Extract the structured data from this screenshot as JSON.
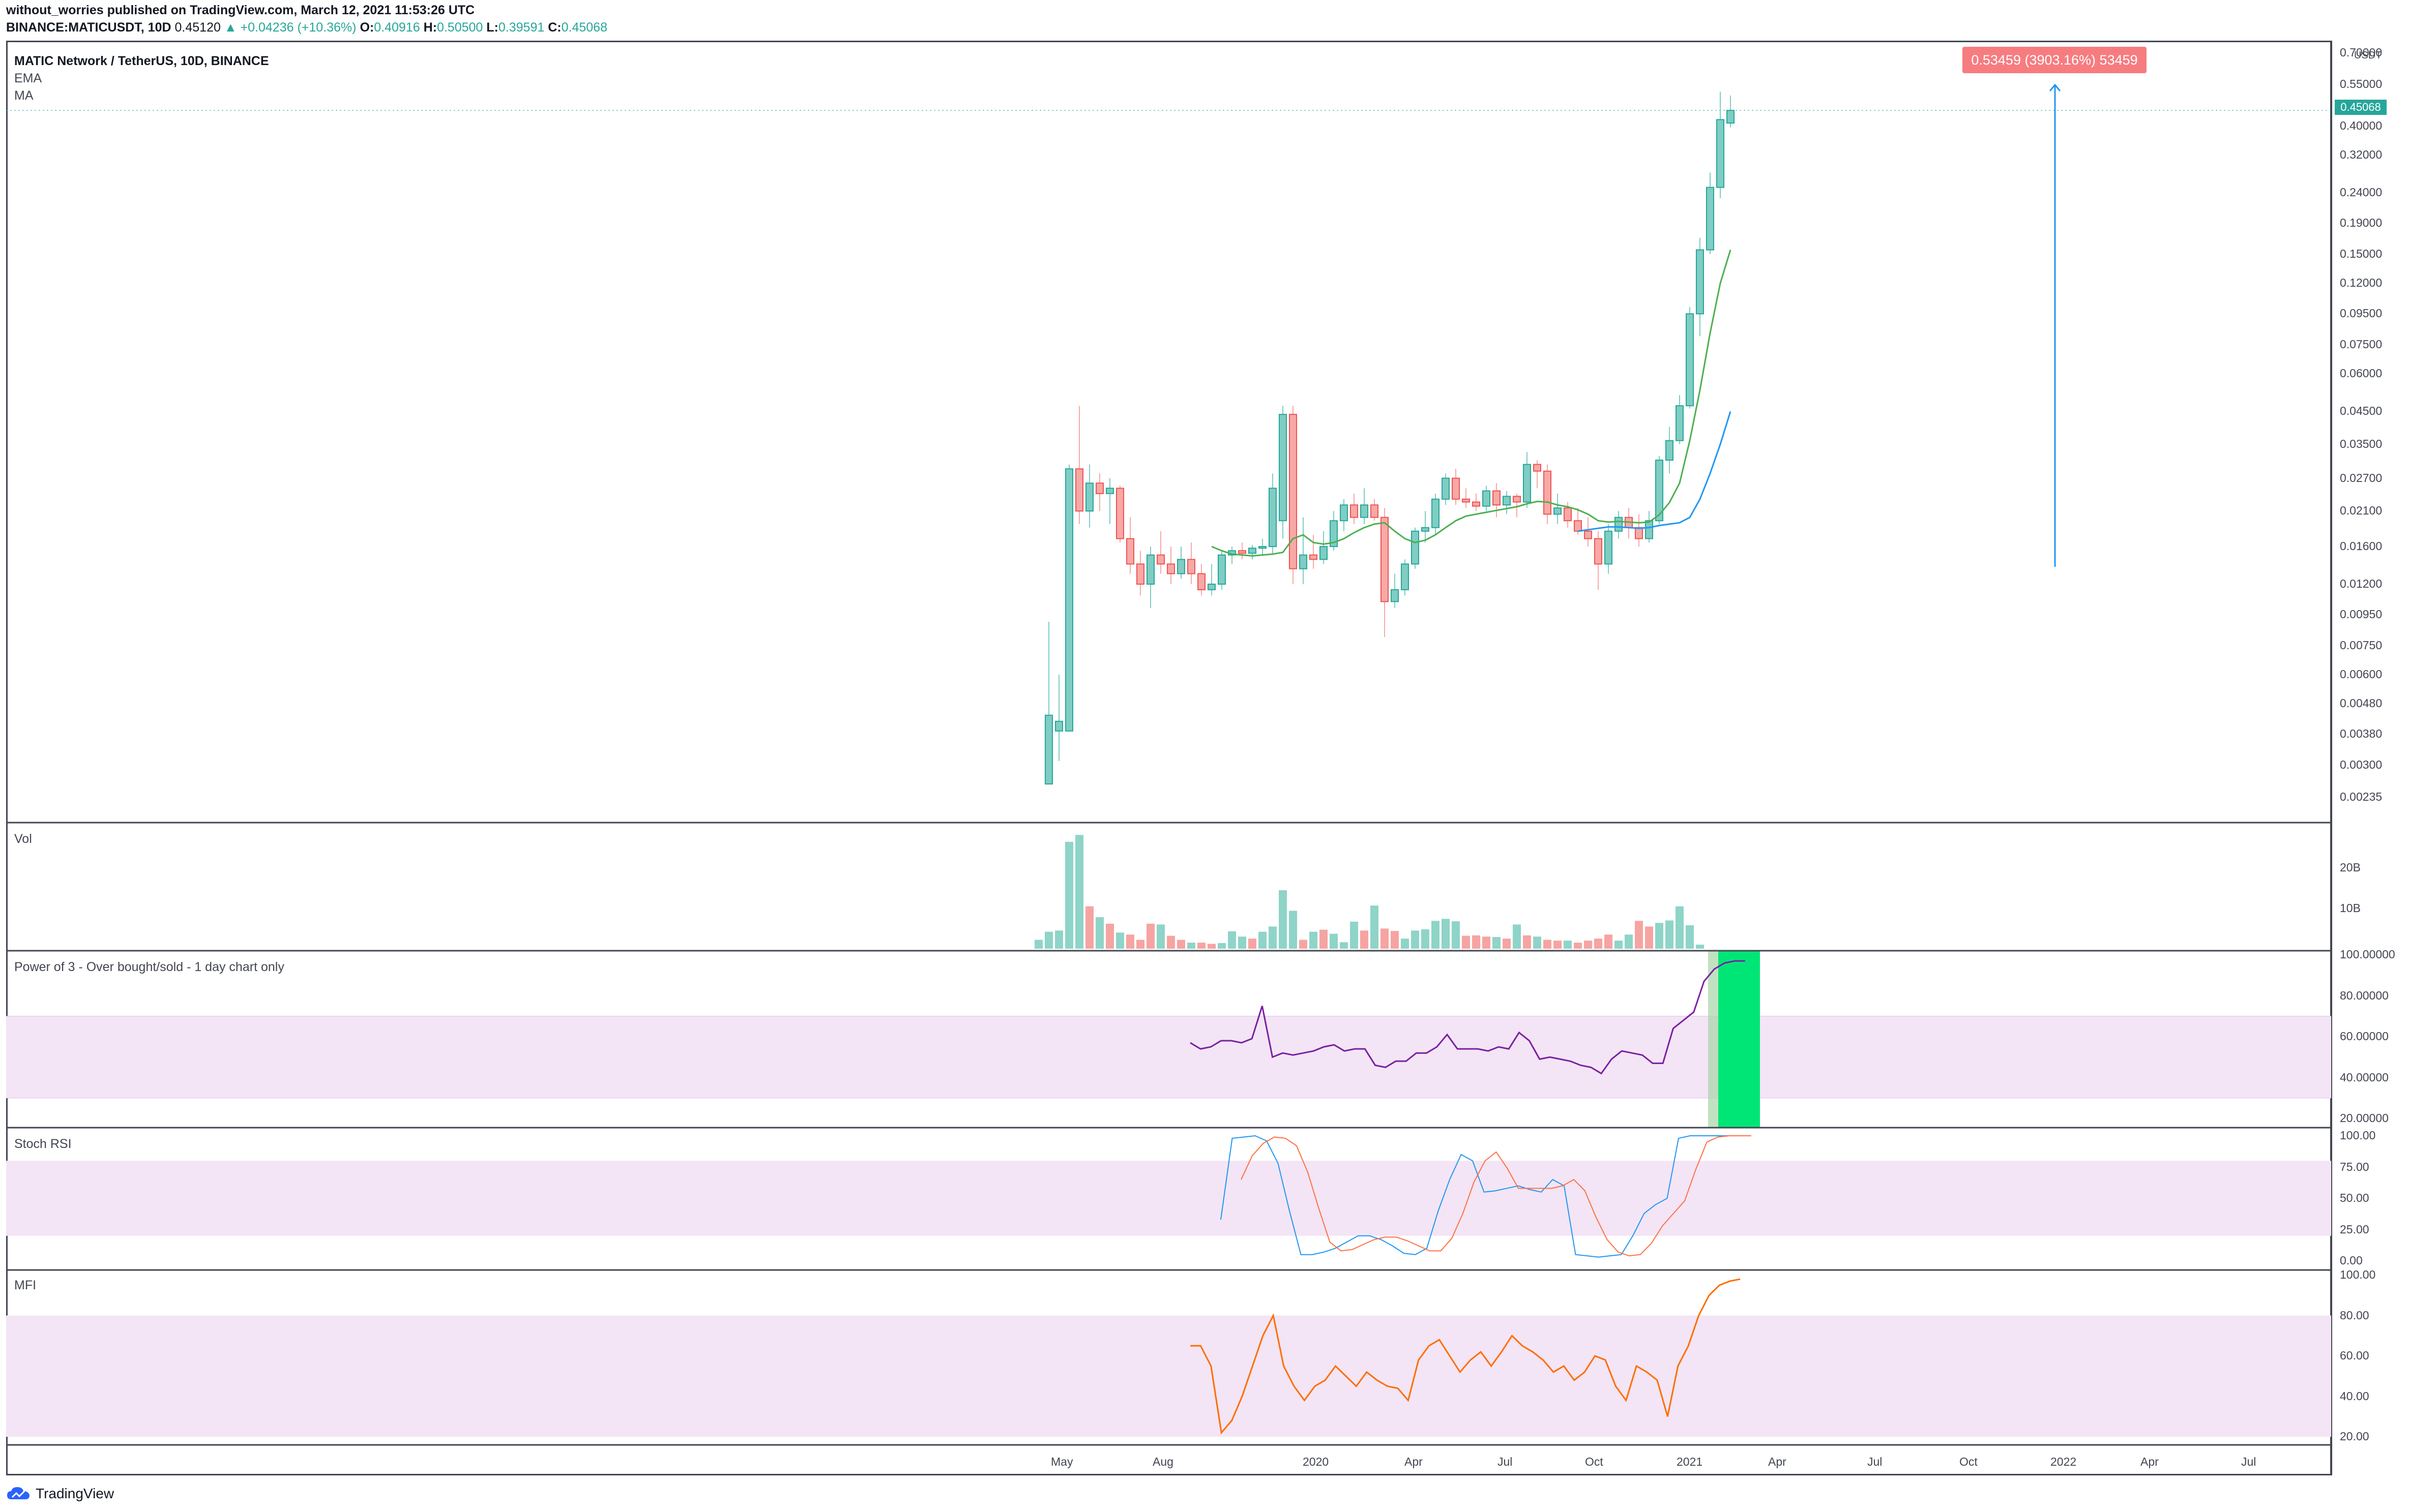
{
  "header": {
    "line1": "without_worries published on TradingView.com, March 12, 2021 11:53:26 UTC",
    "symbol": "BINANCE:MATICUSDT, 10D",
    "last": "0.45120",
    "change": "▲ +0.04236 (+10.36%)",
    "o_label": "O:",
    "o": "0.40916",
    "h_label": "H:",
    "h": "0.50500",
    "l_label": "L:",
    "l": "0.39591",
    "c_label": "C:",
    "c": "0.45068"
  },
  "colors": {
    "up": "#26a69a",
    "up_fill": "#7fcdc3",
    "down": "#ef5350",
    "down_fill": "#f7a9a7",
    "ema": "#4caf50",
    "ma": "#2196f3",
    "power3": "#7b1fa2",
    "stoch_k": "#2196f3",
    "stoch_d": "#ff7043",
    "mfi": "#ff6d00",
    "band": "#f3e5f5",
    "highlight": "#00e676"
  },
  "panes": {
    "main": {
      "title": "MATIC Network / TetherUS, 10D, BINANCE",
      "ind1": "EMA",
      "ind2": "MA",
      "currency": "USDT",
      "current_price": "0.45068",
      "measure_label": "0.53459 (3903.16%) 53459"
    },
    "volume": {
      "title": "Vol"
    },
    "power3": {
      "title": "Power of 3 - Over bought/sold - 1 day chart only"
    },
    "stoch": {
      "title": "Stoch RSI"
    },
    "mfi": {
      "title": "MFI"
    }
  },
  "axes": {
    "price_ticks": [
      "0.70000",
      "0.55000",
      "0.40000",
      "0.32000",
      "0.24000",
      "0.19000",
      "0.15000",
      "0.12000",
      "0.09500",
      "0.07500",
      "0.06000",
      "0.04500",
      "0.03500",
      "0.02700",
      "0.02100",
      "0.01600",
      "0.01200",
      "0.00950",
      "0.00750",
      "0.00600",
      "0.00480",
      "0.00380",
      "0.00300",
      "0.00235"
    ],
    "volume_ticks": [
      "20B",
      "10B"
    ],
    "power3_ticks": [
      "100.00000",
      "80.00000",
      "60.00000",
      "40.00000",
      "20.00000"
    ],
    "stoch_ticks": [
      "100.00",
      "75.00",
      "50.00",
      "25.00",
      "0.00"
    ],
    "mfi_ticks": [
      "100.00",
      "80.00",
      "60.00",
      "40.00",
      "20.00"
    ],
    "x_ticks": [
      "May",
      "Aug",
      "2020",
      "Apr",
      "Jul",
      "Oct",
      "2021",
      "Apr",
      "Jul",
      "Oct",
      "2022",
      "Apr",
      "Jul"
    ]
  },
  "branding": {
    "name": "TradingView"
  },
  "chart_data": {
    "type": "candlestick",
    "title": "MATIC Network / TetherUS, 10D, BINANCE",
    "y_scale": "log",
    "ylim": [
      0.002,
      0.7
    ],
    "x_axis": [
      "May 2019",
      "Jul 2022"
    ],
    "candles": [
      {
        "o": 0.0026,
        "h": 0.009,
        "l": 0.0026,
        "c": 0.0044
      },
      {
        "o": 0.0039,
        "h": 0.006,
        "l": 0.0031,
        "c": 0.0042
      },
      {
        "o": 0.0039,
        "h": 0.03,
        "l": 0.0039,
        "c": 0.029
      },
      {
        "o": 0.029,
        "h": 0.047,
        "l": 0.019,
        "c": 0.021
      },
      {
        "o": 0.021,
        "h": 0.03,
        "l": 0.0185,
        "c": 0.026
      },
      {
        "o": 0.026,
        "h": 0.028,
        "l": 0.021,
        "c": 0.024
      },
      {
        "o": 0.024,
        "h": 0.027,
        "l": 0.019,
        "c": 0.025
      },
      {
        "o": 0.025,
        "h": 0.0255,
        "l": 0.0165,
        "c": 0.017
      },
      {
        "o": 0.017,
        "h": 0.02,
        "l": 0.013,
        "c": 0.014
      },
      {
        "o": 0.014,
        "h": 0.0155,
        "l": 0.011,
        "c": 0.012
      },
      {
        "o": 0.012,
        "h": 0.016,
        "l": 0.01,
        "c": 0.015
      },
      {
        "o": 0.015,
        "h": 0.018,
        "l": 0.013,
        "c": 0.014
      },
      {
        "o": 0.014,
        "h": 0.016,
        "l": 0.012,
        "c": 0.013
      },
      {
        "o": 0.013,
        "h": 0.016,
        "l": 0.0125,
        "c": 0.0145
      },
      {
        "o": 0.0145,
        "h": 0.0165,
        "l": 0.012,
        "c": 0.013
      },
      {
        "o": 0.013,
        "h": 0.014,
        "l": 0.011,
        "c": 0.0115
      },
      {
        "o": 0.0115,
        "h": 0.014,
        "l": 0.011,
        "c": 0.012
      },
      {
        "o": 0.012,
        "h": 0.0155,
        "l": 0.0115,
        "c": 0.015
      },
      {
        "o": 0.015,
        "h": 0.016,
        "l": 0.014,
        "c": 0.0155
      },
      {
        "o": 0.0155,
        "h": 0.0165,
        "l": 0.0145,
        "c": 0.0152
      },
      {
        "o": 0.0152,
        "h": 0.0162,
        "l": 0.0145,
        "c": 0.0158
      },
      {
        "o": 0.0158,
        "h": 0.017,
        "l": 0.015,
        "c": 0.016
      },
      {
        "o": 0.016,
        "h": 0.028,
        "l": 0.015,
        "c": 0.025
      },
      {
        "o": 0.0195,
        "h": 0.047,
        "l": 0.017,
        "c": 0.044
      },
      {
        "o": 0.044,
        "h": 0.047,
        "l": 0.012,
        "c": 0.0135
      },
      {
        "o": 0.0135,
        "h": 0.02,
        "l": 0.012,
        "c": 0.015
      },
      {
        "o": 0.015,
        "h": 0.0175,
        "l": 0.0135,
        "c": 0.0145
      },
      {
        "o": 0.0145,
        "h": 0.018,
        "l": 0.014,
        "c": 0.016
      },
      {
        "o": 0.016,
        "h": 0.021,
        "l": 0.0155,
        "c": 0.0195
      },
      {
        "o": 0.0195,
        "h": 0.023,
        "l": 0.018,
        "c": 0.022
      },
      {
        "o": 0.022,
        "h": 0.024,
        "l": 0.019,
        "c": 0.02
      },
      {
        "o": 0.02,
        "h": 0.025,
        "l": 0.019,
        "c": 0.022
      },
      {
        "o": 0.022,
        "h": 0.023,
        "l": 0.0195,
        "c": 0.02
      },
      {
        "o": 0.02,
        "h": 0.0215,
        "l": 0.008,
        "c": 0.0105
      },
      {
        "o": 0.0105,
        "h": 0.013,
        "l": 0.01,
        "c": 0.0115
      },
      {
        "o": 0.0115,
        "h": 0.0145,
        "l": 0.011,
        "c": 0.014
      },
      {
        "o": 0.014,
        "h": 0.0185,
        "l": 0.0135,
        "c": 0.018
      },
      {
        "o": 0.018,
        "h": 0.021,
        "l": 0.0165,
        "c": 0.0185
      },
      {
        "o": 0.0185,
        "h": 0.024,
        "l": 0.0175,
        "c": 0.023
      },
      {
        "o": 0.023,
        "h": 0.028,
        "l": 0.022,
        "c": 0.027
      },
      {
        "o": 0.027,
        "h": 0.029,
        "l": 0.022,
        "c": 0.023
      },
      {
        "o": 0.023,
        "h": 0.025,
        "l": 0.0215,
        "c": 0.0225
      },
      {
        "o": 0.0225,
        "h": 0.024,
        "l": 0.021,
        "c": 0.0218
      },
      {
        "o": 0.0218,
        "h": 0.0255,
        "l": 0.021,
        "c": 0.0245
      },
      {
        "o": 0.0245,
        "h": 0.026,
        "l": 0.02,
        "c": 0.022
      },
      {
        "o": 0.022,
        "h": 0.0245,
        "l": 0.0205,
        "c": 0.0235
      },
      {
        "o": 0.0235,
        "h": 0.024,
        "l": 0.02,
        "c": 0.0225
      },
      {
        "o": 0.0225,
        "h": 0.033,
        "l": 0.0215,
        "c": 0.03
      },
      {
        "o": 0.03,
        "h": 0.031,
        "l": 0.025,
        "c": 0.0285
      },
      {
        "o": 0.0285,
        "h": 0.03,
        "l": 0.019,
        "c": 0.0205
      },
      {
        "o": 0.0205,
        "h": 0.024,
        "l": 0.019,
        "c": 0.0215
      },
      {
        "o": 0.0215,
        "h": 0.0225,
        "l": 0.0185,
        "c": 0.0195
      },
      {
        "o": 0.0195,
        "h": 0.0215,
        "l": 0.0175,
        "c": 0.018
      },
      {
        "o": 0.018,
        "h": 0.02,
        "l": 0.016,
        "c": 0.017
      },
      {
        "o": 0.017,
        "h": 0.018,
        "l": 0.0115,
        "c": 0.014
      },
      {
        "o": 0.014,
        "h": 0.019,
        "l": 0.013,
        "c": 0.018
      },
      {
        "o": 0.018,
        "h": 0.021,
        "l": 0.017,
        "c": 0.02
      },
      {
        "o": 0.02,
        "h": 0.0215,
        "l": 0.017,
        "c": 0.0185
      },
      {
        "o": 0.0185,
        "h": 0.0205,
        "l": 0.016,
        "c": 0.017
      },
      {
        "o": 0.017,
        "h": 0.021,
        "l": 0.0165,
        "c": 0.0195
      },
      {
        "o": 0.0195,
        "h": 0.032,
        "l": 0.019,
        "c": 0.031
      },
      {
        "o": 0.031,
        "h": 0.04,
        "l": 0.028,
        "c": 0.036
      },
      {
        "o": 0.036,
        "h": 0.051,
        "l": 0.035,
        "c": 0.047
      },
      {
        "o": 0.047,
        "h": 0.1,
        "l": 0.046,
        "c": 0.095
      },
      {
        "o": 0.095,
        "h": 0.17,
        "l": 0.08,
        "c": 0.155
      },
      {
        "o": 0.155,
        "h": 0.28,
        "l": 0.15,
        "c": 0.25
      },
      {
        "o": 0.25,
        "h": 0.52,
        "l": 0.23,
        "c": 0.42
      },
      {
        "o": 0.4092,
        "h": 0.505,
        "l": 0.3959,
        "c": 0.4507
      }
    ],
    "ema": [
      0.016,
      0.0155,
      0.0151,
      0.015,
      0.0149,
      0.015,
      0.0151,
      0.0153,
      0.017,
      0.0175,
      0.0165,
      0.0163,
      0.0165,
      0.017,
      0.0178,
      0.0185,
      0.019,
      0.0192,
      0.018,
      0.017,
      0.0165,
      0.0168,
      0.0175,
      0.0185,
      0.0195,
      0.0202,
      0.0205,
      0.0208,
      0.0211,
      0.0214,
      0.0217,
      0.0222,
      0.0226,
      0.0225,
      0.022,
      0.0217,
      0.0212,
      0.0205,
      0.0195,
      0.0193,
      0.0194,
      0.0193,
      0.0192,
      0.0193,
      0.0204,
      0.0224,
      0.026,
      0.036,
      0.053,
      0.082,
      0.12,
      0.155
    ],
    "ma": [
      0.018,
      0.0182,
      0.0184,
      0.0186,
      0.0186,
      0.0185,
      0.0184,
      0.0185,
      0.0188,
      0.019,
      0.0192,
      0.02,
      0.023,
      0.028,
      0.035,
      0.045
    ],
    "measure": {
      "from": 0.0137,
      "to": 0.548,
      "pct": "3903.16%"
    },
    "volume_billions": [
      2.2,
      4.2,
      4.5,
      26.5,
      28.2,
      10.5,
      7.8,
      6.2,
      4.0,
      3.5,
      2.2,
      6.2,
      6.0,
      3.2,
      2.2,
      1.5,
      1.5,
      1.2,
      1.4,
      4.3,
      3.0,
      2.5,
      4.2,
      5.5,
      14.5,
      9.4,
      2.2,
      4.2,
      4.7,
      3.7,
      1.6,
      6.7,
      4.5,
      10.7,
      5.0,
      4.4,
      2.5,
      4.5,
      4.8,
      6.9,
      7.4,
      6.8,
      3.2,
      3.3,
      3.0,
      2.9,
      2.5,
      6.0,
      3.3,
      3.0,
      2.2,
      2.0,
      2.0,
      1.5,
      2.0,
      2.5,
      3.5,
      2.0,
      3.5,
      6.9,
      5.5,
      6.4,
      7.0,
      10.5,
      5.8,
      1.0
    ],
    "power3": [
      57,
      54,
      55,
      58,
      58,
      57,
      59,
      75,
      50,
      52,
      51,
      52,
      53,
      55,
      56,
      53,
      54,
      54,
      46,
      45,
      48,
      48,
      52,
      52,
      55,
      61,
      54,
      54,
      54,
      53,
      55,
      54,
      62,
      58,
      49,
      50,
      49,
      48,
      46,
      45,
      42,
      49,
      53,
      52,
      51,
      47,
      47,
      64,
      68,
      72,
      87,
      93,
      96,
      97,
      97
    ],
    "stoch_k": [
      33,
      98,
      99,
      100,
      96,
      78,
      40,
      5,
      5,
      7,
      10,
      15,
      20,
      20,
      17,
      12,
      6,
      5,
      10,
      40,
      65,
      85,
      80,
      55,
      56,
      58,
      60,
      57,
      55,
      65,
      60,
      5,
      4,
      3,
      4,
      5,
      20,
      38,
      45,
      50,
      98,
      100,
      100,
      100,
      100,
      100
    ],
    "stoch_d": [
      65,
      84,
      94,
      99,
      98,
      92,
      71,
      42,
      15,
      8,
      9,
      13,
      17,
      19,
      19,
      16,
      12,
      8,
      8,
      18,
      38,
      63,
      80,
      87,
      74,
      58,
      58,
      58,
      58,
      60,
      65,
      56,
      35,
      17,
      7,
      4,
      5,
      14,
      28,
      38,
      48,
      73,
      95,
      99,
      100,
      100,
      100
    ],
    "mfi": [
      65,
      65,
      55,
      22,
      28,
      40,
      55,
      70,
      80,
      55,
      45,
      38,
      45,
      48,
      55,
      50,
      45,
      52,
      48,
      45,
      44,
      38,
      58,
      65,
      68,
      60,
      52,
      58,
      62,
      55,
      62,
      70,
      65,
      62,
      58,
      52,
      55,
      48,
      52,
      60,
      58,
      45,
      38,
      55,
      52,
      48,
      30,
      55,
      65,
      80,
      90,
      95,
      97,
      98
    ],
    "highlight_band": {
      "start_index": 66,
      "end_index": 71,
      "label": "overbought"
    }
  }
}
